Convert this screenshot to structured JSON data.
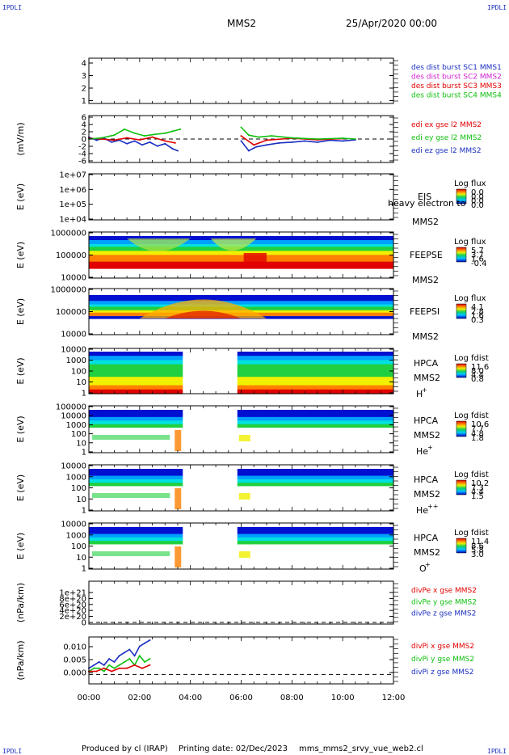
{
  "header": {
    "corner_tl": "IPDLI",
    "corner_tr": "IPDLI",
    "corner_bl": "IPDLI",
    "corner_br": "IPDLI",
    "title": "MMS2",
    "date": "25/Apr/2020 00:00"
  },
  "footer": {
    "produced": "Produced by cl (IRAP)",
    "printing": "Printing date: 02/Dec/2023",
    "file": "mms_mms2_srvy_vue_web2.cl"
  },
  "colors": {
    "mms1": "#1a2fc0",
    "mms2": "#d21fd2",
    "mms3": "#e00000",
    "mms4": "#10c010",
    "x": "#e00000",
    "y": "#10c010",
    "z": "#1a2fc0"
  },
  "chart_data": [
    {
      "type": "line",
      "panel": "des-dist",
      "yticks": [
        "4",
        "3",
        "2",
        "1"
      ],
      "ylim": [
        0.5,
        4.5
      ],
      "legend": [
        {
          "label": "des dist burst SC1 MMS1",
          "color": "#1a2fc0"
        },
        {
          "label": "des dist burst SC2 MMS2",
          "color": "#d21fd2"
        },
        {
          "label": "des dist burst SC3 MMS3",
          "color": "#e00000"
        },
        {
          "label": "des dist burst SC4 MMS4",
          "color": "#10c010"
        }
      ],
      "series": []
    },
    {
      "type": "line",
      "panel": "edi-e",
      "ylabel": "(mV/m)",
      "yticks": [
        "6",
        "4",
        "2",
        "0",
        "-2",
        "-4",
        "-6"
      ],
      "ylim": [
        -6,
        6
      ],
      "legend": [
        {
          "label": "edi ex gse l2 MMS2",
          "color": "#e00000"
        },
        {
          "label": "edi ey gse l2 MMS2",
          "color": "#10c010"
        },
        {
          "label": "edi ez gse l2 MMS2",
          "color": "#1a2fc0"
        }
      ],
      "series": [
        {
          "color": "#1a2fc0",
          "x": [
            0,
            0.3,
            0.6,
            0.9,
            1.2,
            1.5,
            1.8,
            2.1,
            2.4,
            2.7,
            3.0,
            3.3,
            3.5,
            6.0,
            6.3,
            6.6,
            7.0,
            7.5,
            8.0,
            8.5,
            9.0,
            9.5,
            10.0,
            10.5
          ],
          "y": [
            0.5,
            -0.3,
            0.2,
            -0.8,
            -0.3,
            -1.2,
            -0.5,
            -1.5,
            -0.8,
            -1.8,
            -1.2,
            -2.5,
            -3.0,
            -0.5,
            -3.0,
            -2.0,
            -1.5,
            -1.0,
            -0.8,
            -0.5,
            -0.8,
            -0.3,
            -0.5,
            -0.2
          ]
        },
        {
          "color": "#e00000",
          "x": [
            0,
            0.5,
            1.0,
            1.5,
            2.0,
            2.5,
            3.0,
            3.4,
            6.0,
            6.5,
            7.0,
            8.0,
            9.0,
            10.0
          ],
          "y": [
            0.2,
            0,
            -0.3,
            0.3,
            -0.2,
            0.5,
            -0.5,
            -1.0,
            0.8,
            -1.5,
            -0.3,
            0.2,
            -0.2,
            0.1
          ]
        },
        {
          "color": "#10c010",
          "x": [
            0,
            0.5,
            1.0,
            1.4,
            1.8,
            2.2,
            2.6,
            3.0,
            3.3,
            3.6,
            6.0,
            6.3,
            6.7,
            7.2,
            8.0,
            9.0,
            10.0,
            10.5
          ],
          "y": [
            0,
            0.3,
            1.0,
            2.5,
            1.5,
            0.8,
            1.2,
            1.5,
            2.0,
            2.5,
            3.0,
            1.0,
            0.5,
            0.8,
            0.3,
            0,
            0.2,
            0
          ]
        }
      ]
    },
    {
      "type": "heatmap",
      "panel": "eis",
      "ylabel": "E (eV)",
      "yticks": [
        "1e+07",
        "1e+06",
        "1e+05",
        "1e+04"
      ],
      "instrument": "EIS",
      "sat": "MMS2",
      "overlay": "heavy electron to",
      "cbar_title": "Log flux",
      "cbar_ticks": [
        "0.0",
        "0.0",
        "0.0",
        "0.0"
      ]
    },
    {
      "type": "heatmap",
      "panel": "feepse",
      "ylabel": "E (eV)",
      "yticks": [
        "1000000",
        "100000",
        "10000"
      ],
      "instrument": "FEEPSE",
      "sat": "MMS2",
      "cbar_title": "Log flux",
      "cbar_ticks": [
        "5.7",
        "3.7",
        "1.6",
        "-0.4"
      ]
    },
    {
      "type": "heatmap",
      "panel": "feepsi",
      "ylabel": "E (eV)",
      "yticks": [
        "1000000",
        "100000",
        "10000"
      ],
      "instrument": "FEEPSI",
      "sat": "MMS2",
      "cbar_title": "Log flux",
      "cbar_ticks": [
        "4.1",
        "2.8",
        "1.6",
        "0.3"
      ]
    },
    {
      "type": "heatmap",
      "panel": "hpca-h",
      "ylabel": "E (eV)",
      "yticks": [
        "10000",
        "1000",
        "100",
        "10",
        "1"
      ],
      "instrument": "HPCA",
      "sat": "MMS2",
      "species": "H",
      "species_sup": "+",
      "cbar_title": "Log fdist",
      "cbar_ticks": [
        "11.6",
        "8.0",
        "4.4",
        "0.8"
      ]
    },
    {
      "type": "heatmap",
      "panel": "hpca-he",
      "ylabel": "E (eV)",
      "yticks": [
        "100000",
        "10000",
        "1000",
        "100",
        "10",
        "1"
      ],
      "instrument": "HPCA",
      "sat": "MMS2",
      "species": "He",
      "species_sup": "+",
      "cbar_title": "Log fdist",
      "cbar_ticks": [
        "10.6",
        "7.7",
        "4.8",
        "1.8"
      ]
    },
    {
      "type": "heatmap",
      "panel": "hpca-he2",
      "ylabel": "E (eV)",
      "yticks": [
        "10000",
        "1000",
        "100",
        "10",
        "1"
      ],
      "instrument": "HPCA",
      "sat": "MMS2",
      "species": "He",
      "species_sup": "++",
      "cbar_title": "Log fdist",
      "cbar_ticks": [
        "10.2",
        "7.3",
        "4.4",
        "1.5"
      ]
    },
    {
      "type": "heatmap",
      "panel": "hpca-o",
      "ylabel": "E (eV)",
      "yticks": [
        "10000",
        "1000",
        "100",
        "10",
        "1"
      ],
      "instrument": "HPCA",
      "sat": "MMS2",
      "species": "O",
      "species_sup": "+",
      "cbar_title": "Log fdist",
      "cbar_ticks": [
        "11.4",
        "8.6",
        "5.8",
        "3.0"
      ]
    },
    {
      "type": "line",
      "panel": "divpe",
      "ylabel": "(nPa/km)",
      "yticks": [
        "1e+21",
        "8e+20",
        "6e+20",
        "4e+20",
        "2e+20",
        "0"
      ],
      "ylim": [
        0,
        1e+21
      ],
      "legend": [
        {
          "label": "divPe x gse MMS2",
          "color": "#e00000"
        },
        {
          "label": "divPe y gse MMS2",
          "color": "#10c010"
        },
        {
          "label": "divPe z gse MMS2",
          "color": "#1a2fc0"
        }
      ],
      "series": []
    },
    {
      "type": "line",
      "panel": "divpi",
      "ylabel": "(nPa/km)",
      "yticks": [
        "0.010",
        "0.005",
        "0.000"
      ],
      "ylim": [
        -0.003,
        0.012
      ],
      "legend": [
        {
          "label": "divPi x gse MMS2",
          "color": "#e00000"
        },
        {
          "label": "divPi y gse MMS2",
          "color": "#10c010"
        },
        {
          "label": "divPi z gse MMS2",
          "color": "#1a2fc0"
        }
      ],
      "series": [
        {
          "color": "#1a2fc0",
          "x": [
            0,
            0.2,
            0.4,
            0.6,
            0.8,
            1.0,
            1.2,
            1.4,
            1.6,
            1.8,
            2.0,
            2.2,
            2.4
          ],
          "y": [
            0.002,
            0.003,
            0.004,
            0.003,
            0.005,
            0.004,
            0.006,
            0.007,
            0.008,
            0.006,
            0.009,
            0.01,
            0.011
          ]
        },
        {
          "color": "#10c010",
          "x": [
            0,
            0.2,
            0.4,
            0.6,
            0.8,
            1.0,
            1.2,
            1.4,
            1.6,
            1.8,
            2.0,
            2.2,
            2.4
          ],
          "y": [
            0.001,
            0.002,
            0.002,
            0.001,
            0.003,
            0.002,
            0.003,
            0.004,
            0.005,
            0.003,
            0.006,
            0.004,
            0.005
          ]
        },
        {
          "color": "#e00000",
          "x": [
            0,
            0.3,
            0.6,
            0.9,
            1.2,
            1.5,
            1.8,
            2.1,
            2.4
          ],
          "y": [
            0.001,
            0.001,
            0.002,
            0.001,
            0.002,
            0.002,
            0.003,
            0.002,
            0.003
          ]
        }
      ]
    }
  ],
  "xaxis": {
    "ticks": [
      "00:00",
      "02:00",
      "04:00",
      "06:00",
      "08:00",
      "10:00",
      "12:00"
    ],
    "xlim": [
      0,
      12
    ]
  }
}
